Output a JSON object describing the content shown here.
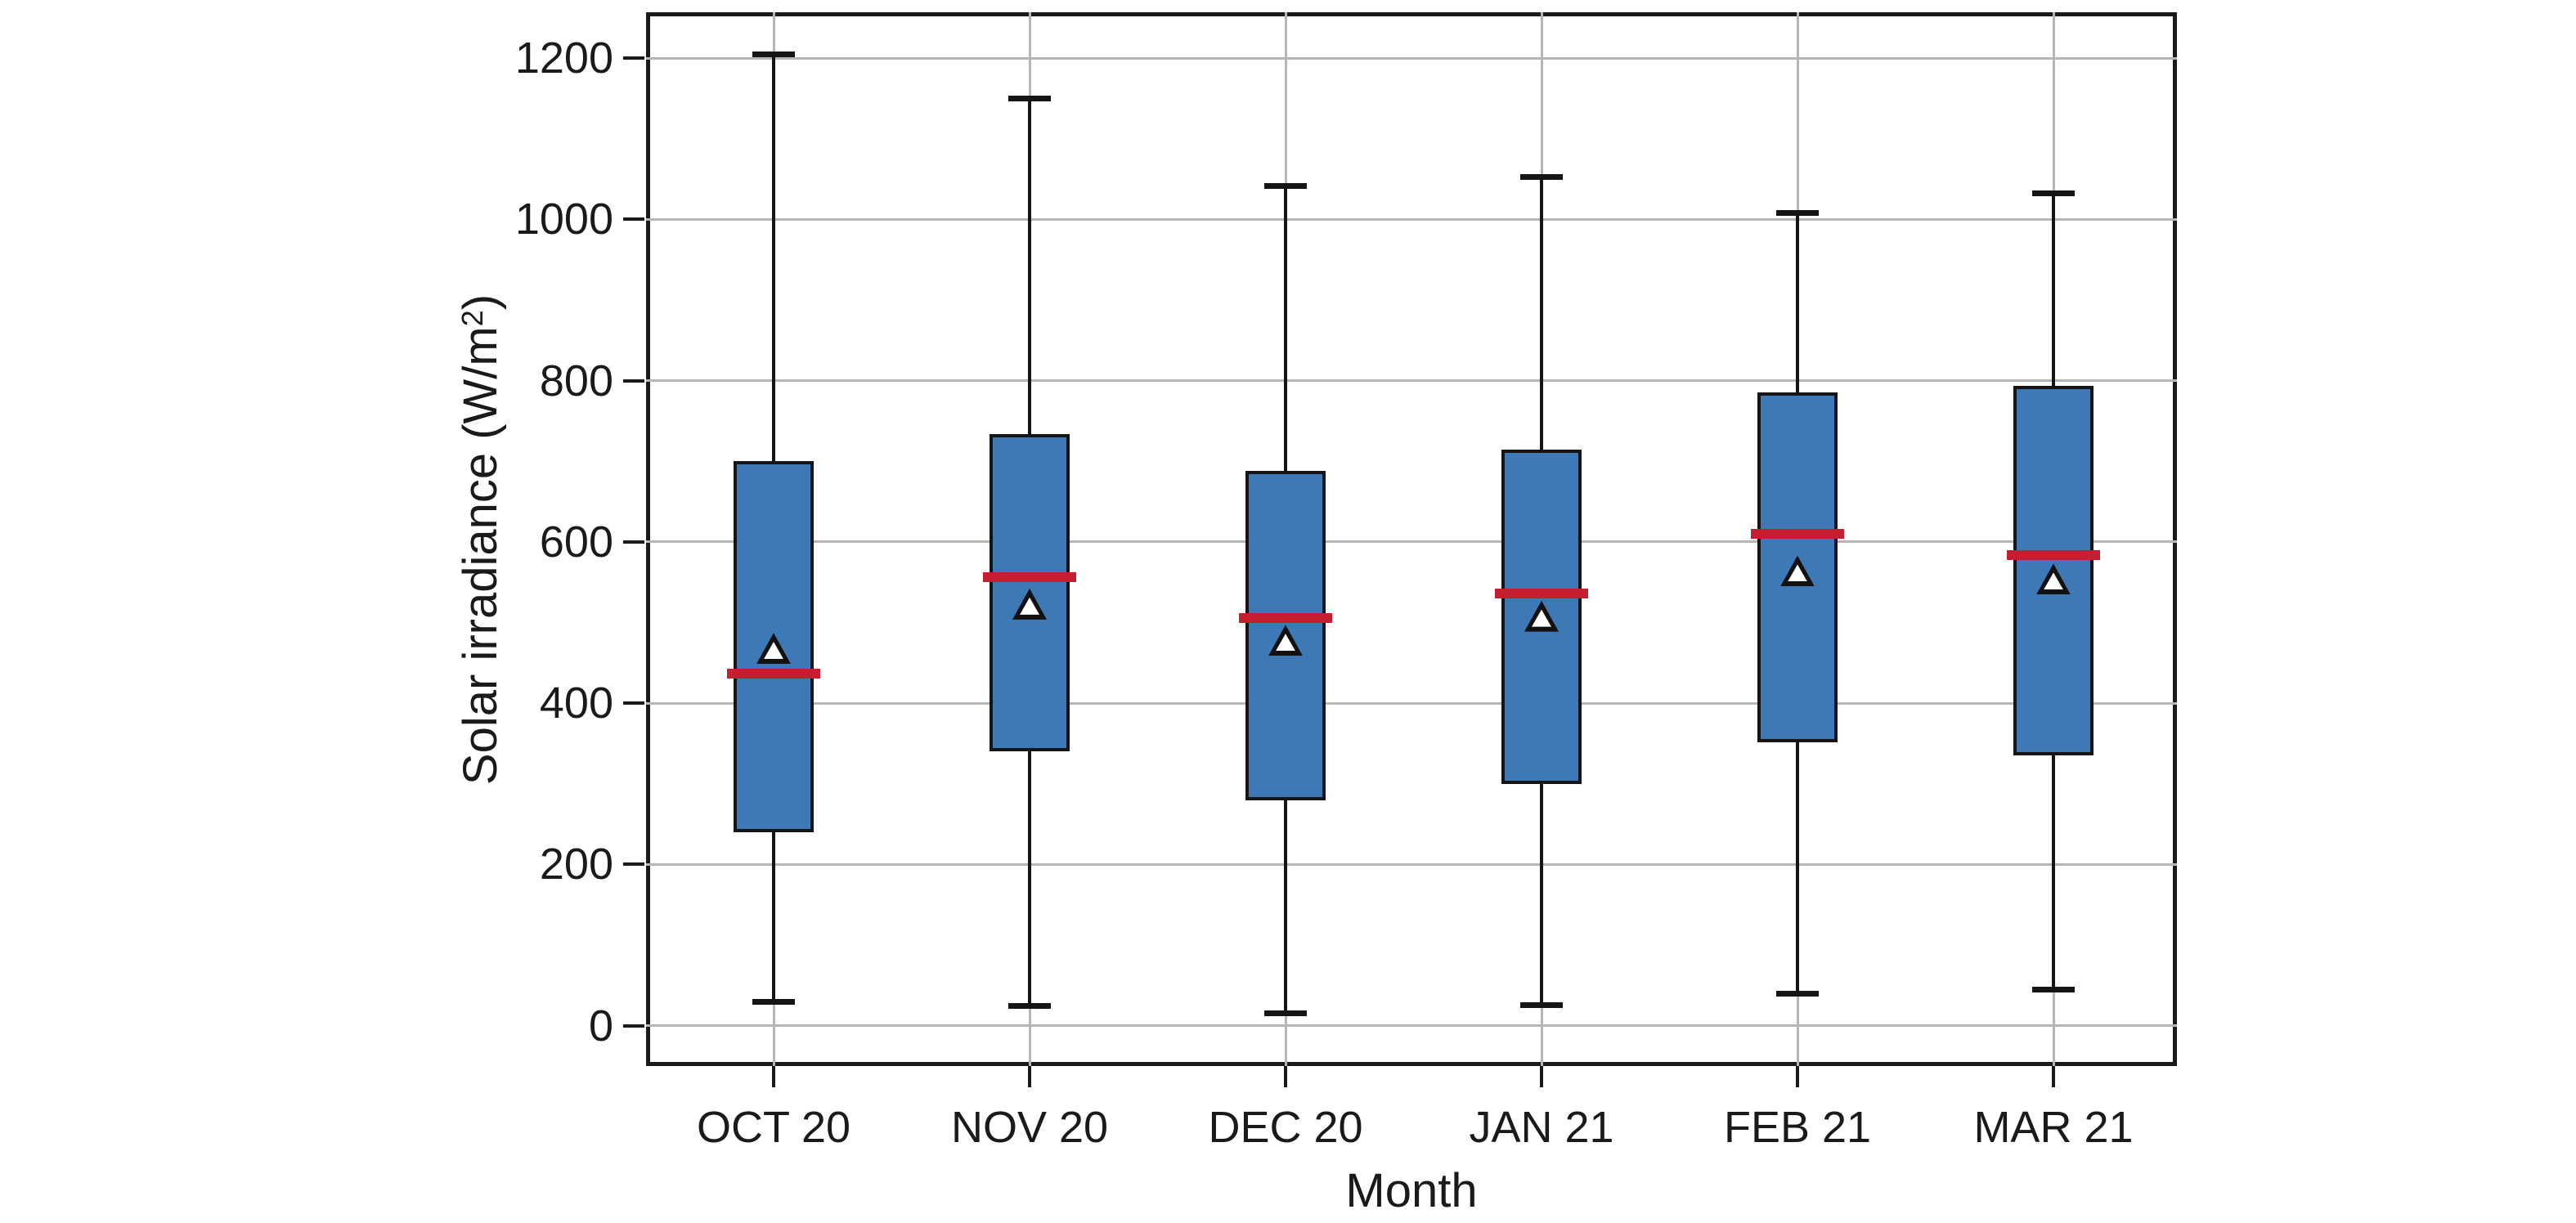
{
  "chart_data": {
    "type": "box",
    "title": "",
    "xlabel": "Month",
    "ylabel": "Solar irradiance (W/m²)",
    "ylabel_parts": {
      "main": "Solar irradiance (W/m",
      "sup": "2",
      "end": ")"
    },
    "categories": [
      "OCT 20",
      "NOV 20",
      "DEC 20",
      "JAN 21",
      "FEB 21",
      "MAR 21"
    ],
    "y_ticks": [
      0,
      200,
      400,
      600,
      800,
      1000,
      1200
    ],
    "ylim": [
      -50,
      1257
    ],
    "grid": true,
    "legend": false,
    "series": [
      {
        "label": "OCT 20",
        "whisker_low": 30,
        "q1": 240,
        "median": 437,
        "mean": 468,
        "q3": 700,
        "whisker_high": 1205
      },
      {
        "label": "NOV 20",
        "whisker_low": 25,
        "q1": 340,
        "median": 556,
        "mean": 523,
        "q3": 734,
        "whisker_high": 1150
      },
      {
        "label": "DEC 20",
        "whisker_low": 15,
        "q1": 280,
        "median": 506,
        "mean": 478,
        "q3": 688,
        "whisker_high": 1042
      },
      {
        "label": "JAN 21",
        "whisker_low": 26,
        "q1": 300,
        "median": 536,
        "mean": 508,
        "q3": 715,
        "whisker_high": 1053
      },
      {
        "label": "FEB 21",
        "whisker_low": 40,
        "q1": 352,
        "median": 610,
        "mean": 564,
        "q3": 786,
        "whisker_high": 1008
      },
      {
        "label": "MAR 21",
        "whisker_low": 45,
        "q1": 335,
        "median": 584,
        "mean": 554,
        "q3": 794,
        "whisker_high": 1032
      }
    ],
    "colors": {
      "box_fill": "#3E79B7",
      "box_edge": "#151515",
      "median_line": "#C41E30",
      "whisker": "#151515",
      "mean_marker_fill": "#ffffff",
      "mean_marker_edge": "#111111",
      "gridline": "#b6b6b6",
      "axis": "#1a1a1a",
      "text": "#1a1a1a"
    }
  }
}
